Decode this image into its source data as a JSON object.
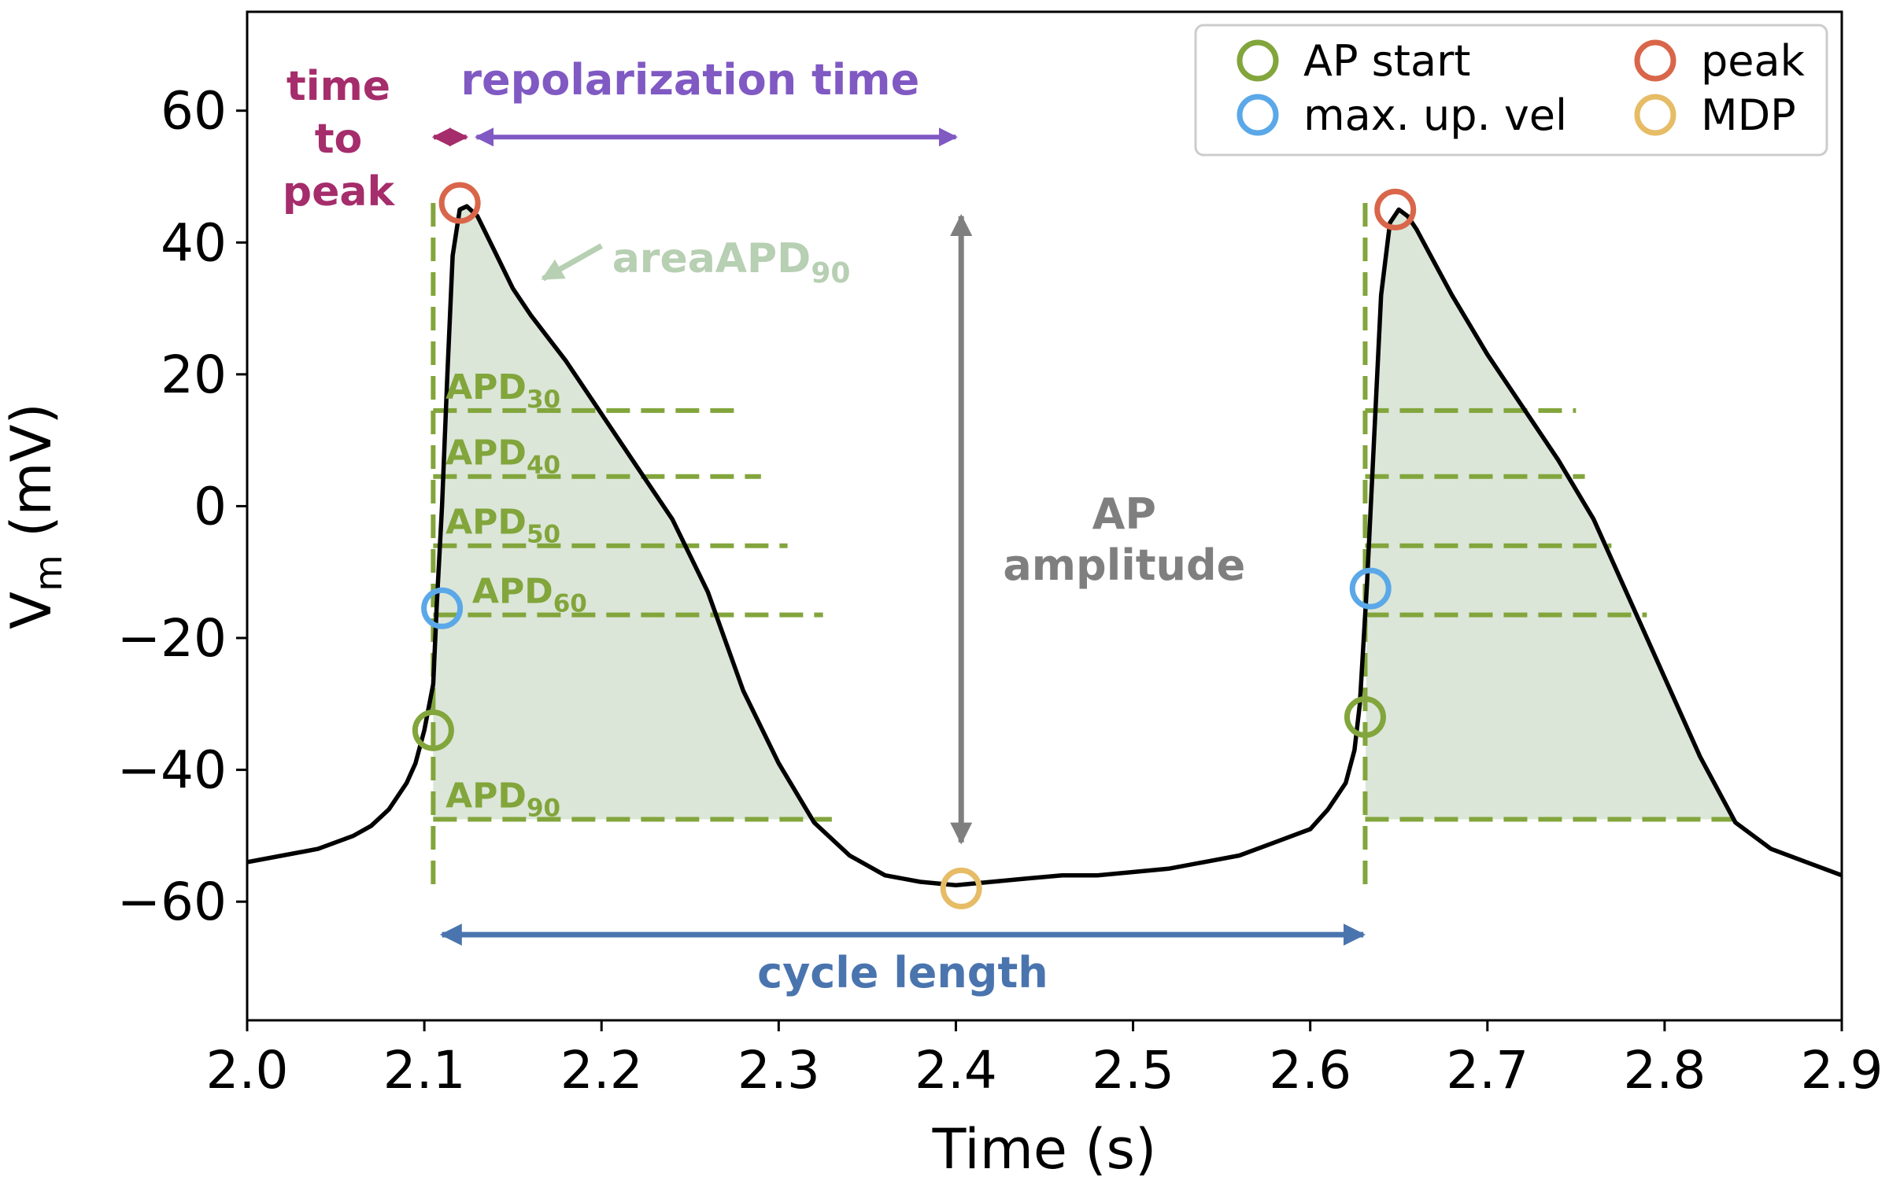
{
  "chart_data": {
    "type": "line",
    "xlabel": "Time (s)",
    "ylabel": "V",
    "ylabel_sub": "m",
    "ylabel_unit": "(mV)",
    "xlim": [
      2.0,
      2.9
    ],
    "ylim": [
      -78,
      75
    ],
    "x_ticks": [
      2.0,
      2.1,
      2.2,
      2.3,
      2.4,
      2.5,
      2.6,
      2.7,
      2.8,
      2.9
    ],
    "x_tick_labels": [
      "2.0",
      "2.1",
      "2.2",
      "2.3",
      "2.4",
      "2.5",
      "2.6",
      "2.7",
      "2.8",
      "2.9"
    ],
    "y_ticks": [
      -60,
      -40,
      -20,
      0,
      20,
      40,
      60
    ],
    "y_tick_labels": [
      "−60",
      "−40",
      "−20",
      "0",
      "20",
      "40",
      "60"
    ],
    "grid": false,
    "legend_position": "top-right",
    "trace": {
      "x": [
        2.0,
        2.02,
        2.04,
        2.06,
        2.07,
        2.08,
        2.09,
        2.095,
        2.1,
        2.105,
        2.107,
        2.11,
        2.113,
        2.116,
        2.12,
        2.124,
        2.13,
        2.14,
        2.15,
        2.16,
        2.18,
        2.2,
        2.22,
        2.24,
        2.26,
        2.28,
        2.3,
        2.32,
        2.34,
        2.36,
        2.38,
        2.4,
        2.42,
        2.44,
        2.46,
        2.48,
        2.5,
        2.52,
        2.54,
        2.56,
        2.58,
        2.6,
        2.61,
        2.62,
        2.625,
        2.628,
        2.632,
        2.636,
        2.64,
        2.645,
        2.65,
        2.655,
        2.66,
        2.67,
        2.68,
        2.7,
        2.72,
        2.74,
        2.76,
        2.78,
        2.8,
        2.82,
        2.84,
        2.86,
        2.88,
        2.9
      ],
      "y": [
        -54,
        -53,
        -52,
        -50,
        -48.5,
        -46,
        -42,
        -39,
        -34,
        -27,
        -15,
        0,
        20,
        38,
        45,
        45.5,
        44,
        38.5,
        33,
        29,
        22,
        14,
        6,
        -2,
        -13,
        -28,
        -39,
        -48,
        -53,
        -56,
        -57,
        -57.5,
        -57,
        -56.5,
        -56,
        -56,
        -55.5,
        -55,
        -54,
        -53,
        -51,
        -49,
        -46,
        -42,
        -37,
        -30,
        -12,
        10,
        32,
        43,
        45,
        44,
        42,
        37,
        32,
        23,
        15,
        7,
        -2,
        -14,
        -26,
        -38,
        -48,
        -52,
        -54,
        -56
      ]
    },
    "ap_start_points": [
      {
        "x": 2.105,
        "y": -34
      },
      {
        "x": 2.631,
        "y": -32
      }
    ],
    "max_up_vel_points": [
      {
        "x": 2.11,
        "y": -15.5
      },
      {
        "x": 2.634,
        "y": -12.5
      }
    ],
    "peak_points": [
      {
        "x": 2.12,
        "y": 46
      },
      {
        "x": 2.648,
        "y": 45
      }
    ],
    "mdp_points": [
      {
        "x": 2.403,
        "y": -58
      }
    ],
    "apd_levels": [
      {
        "label": "APD",
        "sub": "30",
        "y": 14.5,
        "ends": [
          2.28,
          2.75
        ]
      },
      {
        "label": "APD",
        "sub": "40",
        "y": 4.5,
        "ends": [
          2.29,
          2.755
        ]
      },
      {
        "label": "APD",
        "sub": "50",
        "y": -6,
        "ends": [
          2.305,
          2.77
        ]
      },
      {
        "label": "APD",
        "sub": "60",
        "y": -16.5,
        "ends": [
          2.325,
          2.79
        ]
      },
      {
        "label": "APD",
        "sub": "90",
        "y": -47.5,
        "ends": [
          2.33,
          2.845
        ]
      }
    ],
    "ap_start_times": [
      2.105,
      2.631
    ],
    "ap_start_top": 46,
    "ap_start_bottom": -58,
    "annotations": {
      "area_label": "areaAPD",
      "area_sub": "90",
      "time_to_peak": [
        "time",
        "to",
        "peak"
      ],
      "repolarization_time": "repolarization time",
      "ap_amplitude": [
        "AP",
        "amplitude"
      ],
      "cycle_length": "cycle length"
    },
    "arrows": {
      "time_to_peak": {
        "x1": 2.1,
        "x2": 2.13,
        "y": 56
      },
      "repolarization": {
        "x1": 2.125,
        "x2": 2.4,
        "y": 56
      },
      "amplitude": {
        "x": 2.403,
        "y1": 44,
        "y2": -51
      },
      "cycle_length": {
        "x1": 2.11,
        "x2": 2.63,
        "y": -65
      }
    },
    "legend": [
      {
        "label": "AP start",
        "color": "#82a53c"
      },
      {
        "label": "max. up. vel",
        "color": "#5ba8e8"
      },
      {
        "label": "peak",
        "color": "#d9664a"
      },
      {
        "label": "MDP",
        "color": "#e6bc66"
      }
    ],
    "colors": {
      "trace": "#000000",
      "apd": "#82a53c",
      "area_fill": "#dbe6d8",
      "area_label": "#b7cfb2",
      "time_to_peak": "#a52d6b",
      "repolarization": "#8059c3",
      "amplitude": "#7f7f7f",
      "cycle_length": "#4a74ae",
      "ap_start": "#82a53c",
      "max_up_vel": "#5ba8e8",
      "peak": "#d9664a",
      "mdp": "#e6bc66"
    }
  }
}
